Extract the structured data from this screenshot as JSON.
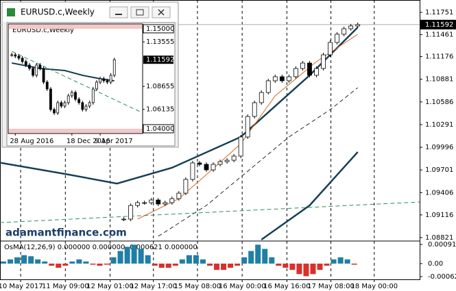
{
  "chart_data": [
    {
      "type": "candlestick",
      "xlim": [
        0,
        61
      ],
      "ylim": [
        1.08794,
        1.11912
      ],
      "yticks": [
        1.08821,
        1.09116,
        1.09406,
        1.09701,
        1.09996,
        1.10291,
        1.10586,
        1.10881,
        1.11176,
        1.11461,
        1.11751
      ],
      "xticks": [
        {
          "value": 3,
          "label": "10 May 2017"
        },
        {
          "value": 9.5,
          "label": "11 May 09:00"
        },
        {
          "value": 16,
          "label": "12 May 01:00"
        },
        {
          "value": 22.3,
          "label": "12 May 17:00"
        },
        {
          "value": 28.7,
          "label": "15 May 08:00"
        },
        {
          "value": 35.2,
          "label": "16 May 00:00"
        },
        {
          "value": 41.7,
          "label": "16 May 16:00"
        },
        {
          "value": 48.1,
          "label": "17 May 08:00"
        },
        {
          "value": 54.4,
          "label": "18 May 00:00"
        }
      ],
      "current_price": 1.11592,
      "watermark": "adamantfinance.com",
      "candles": {
        "x": [
          18,
          19,
          20,
          21,
          22,
          23,
          24,
          25,
          26,
          27,
          28,
          29,
          30,
          31,
          32,
          33,
          34,
          35,
          36,
          37,
          38,
          39,
          40,
          41,
          42,
          43,
          44,
          45,
          46,
          47,
          48,
          49,
          50,
          51,
          52
        ],
        "close": [
          1.09061,
          1.09239,
          1.09275,
          1.09275,
          1.0931,
          1.09257,
          1.09275,
          1.09328,
          1.09399,
          1.09578,
          1.09792,
          1.09774,
          1.09702,
          1.09774,
          1.09809,
          1.09827,
          1.09881,
          1.1013,
          1.10397,
          1.10576,
          1.10709,
          1.10861,
          1.10914,
          1.10861,
          1.10914,
          1.11021,
          1.11092,
          1.10932,
          1.11021,
          1.11199,
          1.1136,
          1.11467,
          1.11538,
          1.11574,
          1.11592
        ]
      },
      "lines": [
        {
          "x": [
            0,
            10,
            17,
            25,
            35,
            45,
            52
          ],
          "values": [
            1.09795,
            1.0964,
            1.09524,
            1.09729,
            1.1013,
            1.10932,
            1.11556
          ],
          "color": "#163f55",
          "width": 2.5,
          "dash": false
        },
        {
          "x": [
            20,
            26,
            30,
            35,
            40,
            46,
            52
          ],
          "values": [
            1.09061,
            1.09328,
            1.0964,
            1.10041,
            1.10665,
            1.1111,
            1.11467
          ],
          "color": "#d2691e",
          "width": 1,
          "dash": false
        },
        {
          "x": [
            23,
            30,
            36,
            42,
            48,
            52
          ],
          "values": [
            1.08838,
            1.09239,
            1.09684,
            1.1013,
            1.10486,
            1.10771
          ],
          "color": "#1a2a35",
          "width": 1,
          "dash": true
        },
        {
          "x": [
            38,
            45,
            52
          ],
          "values": [
            1.08794,
            1.09239,
            1.09934
          ],
          "color": "#163f55",
          "width": 2.5,
          "dash": false
        },
        {
          "x": [
            0,
            61
          ],
          "values": [
            1.09016,
            1.09284
          ],
          "color": "#2e8b57",
          "width": 1,
          "dash": true
        }
      ]
    },
    {
      "type": "bar",
      "title": "OsMA(12,26,9) 0.000000 0.000000 -0.000621 0.000000",
      "ylim": [
        -0.00075,
        0.000976
      ],
      "yticks": [
        0.000911,
        {
          "value": 0,
          "label": "0.00"
        },
        -0.00062
      ],
      "colors": {
        "positive": "#1f7fa6",
        "negative": "#d9302c"
      },
      "values": [
        0.0001,
        0.0002,
        0.0003,
        0.0004,
        0.00035,
        0.0002,
        0.0001,
        -0.0001,
        -0.0002,
        -0.0001,
        0.0001,
        0.0002,
        0.0001,
        -5e-05,
        -0.0001,
        -5e-05,
        0.0003,
        0.0006,
        0.0008,
        0.0009,
        0.0007,
        0.0004,
        -0.0001,
        -0.0002,
        -0.0002,
        -0.0001,
        0.0002,
        0.0004,
        0.0004,
        0.0002,
        -0.0001,
        -0.0003,
        -0.0003,
        -0.0002,
        -0.0001,
        0.0003,
        0.0006,
        0.0009,
        0.0007,
        0.0003,
        -0.0001,
        -0.0002,
        -0.0003,
        -0.0005,
        -0.0006,
        -0.0005,
        -0.0003,
        -0.0001,
        0.0002,
        0.0003,
        0.0002,
        -5e-05
      ]
    },
    {
      "type": "candlestick",
      "title": "EURUSD.c,Weekly",
      "symbol": "EURUSD.c,Weekly",
      "xlim": [
        -1,
        37
      ],
      "ylim": [
        1.03473,
        1.15527
      ],
      "yticks": [
        {
          "value": 1.13555,
          "label": "1.13555"
        },
        {
          "value": 1.08655,
          "label": "1.08655"
        },
        {
          "value": 1.06135,
          "label": "1.06135"
        }
      ],
      "levels": [
        {
          "value": 1.15,
          "label": "1.15000"
        },
        {
          "value": 1.04,
          "label": "1.04000"
        }
      ],
      "xticks": [
        {
          "value": 1,
          "label": "28 Aug 2016"
        },
        {
          "value": 17,
          "label": "18 Dec 2016"
        },
        {
          "value": 25,
          "label": "9 Apr 2017"
        }
      ],
      "current_price": 1.11592,
      "candles": {
        "x": [
          0,
          1,
          2,
          3,
          4,
          5,
          6,
          7,
          8,
          9,
          10,
          11,
          12,
          13,
          14,
          15,
          16,
          17,
          18,
          19,
          20,
          21,
          22,
          23,
          24,
          25,
          26,
          27,
          28,
          29
        ],
        "close": [
          1.12138,
          1.11988,
          1.11762,
          1.11386,
          1.11009,
          1.10633,
          1.0988,
          1.11009,
          1.10633,
          1.09127,
          1.08374,
          1.06115,
          1.05738,
          1.06868,
          1.06491,
          1.06868,
          1.07621,
          1.07997,
          1.07244,
          1.06868,
          1.06115,
          1.06491,
          1.06868,
          1.08374,
          1.09127,
          1.09503,
          1.09277,
          1.09127,
          1.0988,
          1.11592
        ]
      },
      "lines": [
        {
          "x": [
            0,
            8,
            15,
            20,
            25,
            29
          ],
          "values": [
            1.11235,
            1.10633,
            1.10407,
            1.0988,
            1.09503,
            1.09277
          ],
          "color": "#163f55",
          "width": 2,
          "dash": false
        },
        {
          "x": [
            0,
            37
          ],
          "values": [
            1.12515,
            1.05738
          ],
          "color": "#2e8b57",
          "width": 1,
          "dash": true
        }
      ]
    }
  ]
}
